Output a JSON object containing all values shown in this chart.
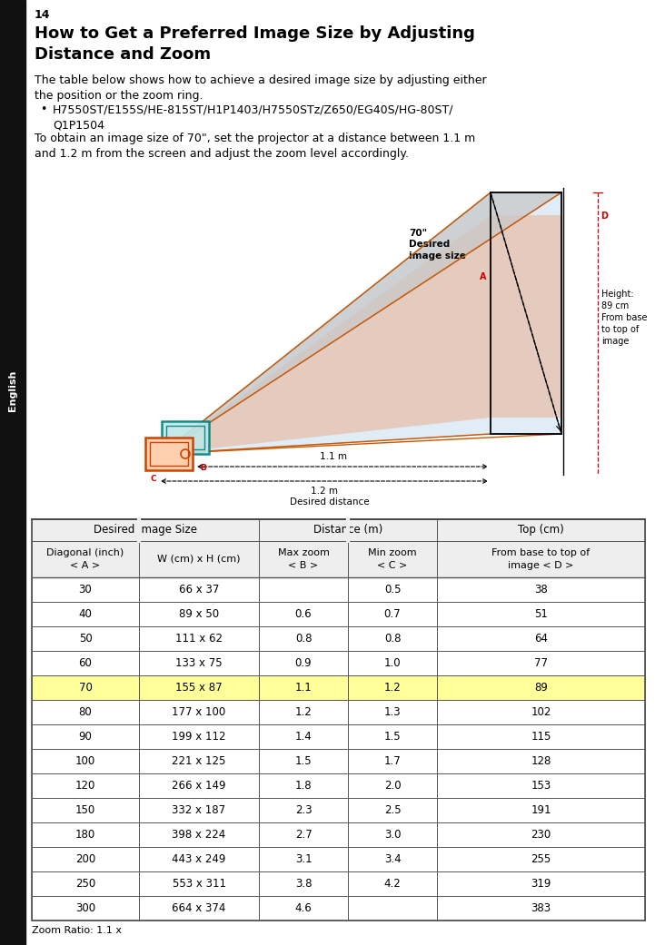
{
  "page_number": "14",
  "title": "How to Get a Preferred Image Size by Adjusting\nDistance and Zoom",
  "body_text1": "The table below shows how to achieve a desired image size by adjusting either\nthe position or the zoom ring.",
  "bullet_text": "H7550ST/E155S/HE-815ST/H1P1403/H7550STz/Z650/EG40S/HG-80ST/\nQ1P1504",
  "body_text2": "To obtain an image size of 70\", set the projector at a distance between 1.1 m\nand 1.2 m from the screen and adjust the zoom level accordingly.",
  "sidebar_text": "English",
  "zoom_ratio": "Zoom Ratio: 1.1 x",
  "table_header1": "Desired Image Size",
  "table_header2": "Distance (m)",
  "table_header3": "Top (cm)",
  "col_header1": "Diagonal (inch)\n< A >",
  "col_header2": "W (cm) x H (cm)",
  "col_header3": "Max zoom\n< B >",
  "col_header4": "Min zoom\n< C >",
  "col_header5": "From base to top of\nimage < D >",
  "table_data": [
    [
      "30",
      "66 x 37",
      "",
      "0.5",
      "38"
    ],
    [
      "40",
      "89 x 50",
      "0.6",
      "0.7",
      "51"
    ],
    [
      "50",
      "111 x 62",
      "0.8",
      "0.8",
      "64"
    ],
    [
      "60",
      "133 x 75",
      "0.9",
      "1.0",
      "77"
    ],
    [
      "70",
      "155 x 87",
      "1.1",
      "1.2",
      "89"
    ],
    [
      "80",
      "177 x 100",
      "1.2",
      "1.3",
      "102"
    ],
    [
      "90",
      "199 x 112",
      "1.4",
      "1.5",
      "115"
    ],
    [
      "100",
      "221 x 125",
      "1.5",
      "1.7",
      "128"
    ],
    [
      "120",
      "266 x 149",
      "1.8",
      "2.0",
      "153"
    ],
    [
      "150",
      "332 x 187",
      "2.3",
      "2.5",
      "191"
    ],
    [
      "180",
      "398 x 224",
      "2.7",
      "3.0",
      "230"
    ],
    [
      "200",
      "443 x 249",
      "3.1",
      "3.4",
      "255"
    ],
    [
      "250",
      "553 x 311",
      "3.8",
      "4.2",
      "319"
    ],
    [
      "300",
      "664 x 374",
      "4.6",
      "",
      "383"
    ]
  ],
  "highlight_row": 4,
  "highlight_color": "#ffff99",
  "bg_color": "#ffffff",
  "text_color": "#000000",
  "sidebar_bg": "#111111",
  "sidebar_text_color": "#ffffff",
  "diagram_img_label": "70\"\nDesired\nimage size",
  "diagram_label_A": "A",
  "diagram_label_B": "B",
  "diagram_label_C": "C",
  "diagram_label_D": "D",
  "diagram_dist1": "1.1 m",
  "diagram_dist2": "1.2 m",
  "diagram_height_label": "Height:\n89 cm\nFrom base\nto top of\nimage",
  "diagram_desired_dist": "Desired distance"
}
